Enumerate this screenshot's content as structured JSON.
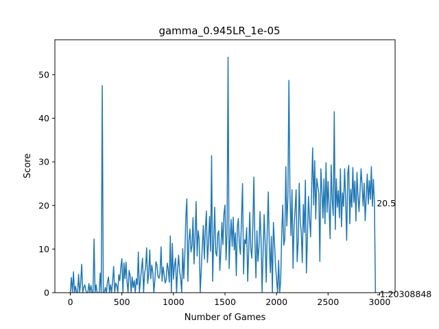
{
  "chart_data": {
    "type": "line",
    "title": "gamma_0.945LR_1e-05",
    "xlabel": "Number of Games",
    "ylabel": "Score",
    "xlim": [
      -150,
      3150
    ],
    "ylim": [
      0,
      58
    ],
    "xticks": [
      0,
      500,
      1000,
      1500,
      2000,
      2500,
      3000
    ],
    "yticks": [
      0,
      10,
      20,
      30,
      40,
      50
    ],
    "series_color": "#1f77b4",
    "grid": false,
    "annotations": [
      {
        "text": "20.5",
        "x": 2985,
        "y": 20.5
      },
      {
        "text": "-1.20308848",
        "x": 2985,
        "y": -0.3
      }
    ],
    "series": [
      {
        "x_start": 0,
        "x_step": 10,
        "values": [
          0,
          3.5,
          0,
          4.8,
          0,
          1.5,
          0,
          0,
          4.2,
          0,
          2.3,
          6.5,
          0,
          1.2,
          1.8,
          0.5,
          0,
          0,
          2.1,
          0,
          1.7,
          0,
          0,
          12.3,
          0,
          1.8,
          0,
          0,
          0,
          4.5,
          0,
          47.5,
          0,
          0,
          1.2,
          0,
          2.5,
          3.6,
          0,
          1.8,
          0,
          2.6,
          6.0,
          0,
          2.2,
          1.7,
          0,
          4.1,
          2.8,
          5.9,
          7.8,
          0,
          6.8,
          3.2,
          7.0,
          2.5,
          0,
          5.1,
          4.0,
          0,
          3.6,
          1.2,
          2.8,
          0,
          3.2,
          1.8,
          9.3,
          0,
          2.9,
          5.5,
          7.9,
          0,
          4.4,
          5.8,
          10.3,
          2.1,
          4.1,
          9.8,
          3.2,
          6.3,
          4.7,
          0,
          2.8,
          7.1,
          6.4,
          3.8,
          3.3,
          4.5,
          10.5,
          2.6,
          5.9,
          4.2,
          2.2,
          3.0,
          6.8,
          5.3,
          2.4,
          13.0,
          0,
          11.3,
          3.1,
          6.2,
          7.9,
          0,
          5.4,
          8.6,
          4.9,
          3.2,
          0,
          10.1,
          3.2,
          8.2,
          17.2,
          21.5,
          2.6,
          11.9,
          14.6,
          9.3,
          10.8,
          17.2,
          6.6,
          12.8,
          20.9,
          8.4,
          14.2,
          12.2,
          0,
          5.2,
          10.6,
          15.4,
          7.7,
          14.5,
          18.7,
          6.9,
          11.6,
          17.5,
          9.5,
          31.4,
          2.6,
          12.0,
          19.6,
          9.2,
          8.4,
          13.5,
          14.2,
          5.1,
          9.6,
          16.1,
          11.0,
          18.1,
          20.1,
          7.5,
          13.4,
          54.0,
          5.5,
          12.1,
          16.8,
          10.6,
          17.3,
          9.8,
          13.7,
          3.9,
          15.1,
          17.0,
          10.9,
          8.8,
          16.6,
          25.0,
          4.3,
          12.1,
          11.2,
          14.9,
          2.6,
          9.6,
          18.4,
          10.1,
          7.9,
          15.3,
          26.5,
          11.8,
          3.4,
          14.2,
          7.2,
          10.5,
          18.6,
          12.1,
          0,
          9.5,
          17.9,
          11.2,
          2.4,
          14.1,
          23.1,
          10.8,
          4.6,
          12.9,
          0,
          16.1,
          11.7,
          6.5,
          3.0,
          0,
          7.4,
          0,
          2.8,
          13.4,
          20.1,
          10.9,
          12.3,
          28.9,
          15.3,
          21.9,
          48.7,
          22.8,
          13.1,
          23.6,
          5.6,
          15.4,
          19.0,
          23.6,
          7.1,
          11.6,
          25.1,
          16.2,
          13.9,
          6.9,
          20.2,
          13.8,
          25.8,
          4.5,
          12.7,
          22.1,
          17.2,
          12.8,
          23.7,
          33.2,
          20.1,
          30.3,
          16.9,
          26.2,
          24.4,
          22.7,
          7.2,
          28.4,
          23.5,
          17.1,
          26.1,
          15.8,
          29.8,
          18.4,
          25.5,
          19.4,
          12.4,
          29.3,
          21.3,
          17.7,
          41.5,
          14.5,
          26.1,
          19.6,
          23.4,
          17.2,
          28.4,
          15.1,
          22.9,
          19.8,
          28.4,
          21.2,
          12.0,
          27.2,
          29.2,
          15.8,
          23.7,
          19.6,
          28.7,
          20.7,
          25.6,
          16.4,
          27.6,
          22.2,
          18.6,
          23.3,
          28.4,
          24.7,
          19.9,
          25.1,
          16.5,
          22.1,
          27.2,
          20.3,
          25.7,
          21.4,
          28.9,
          19.8,
          26.0,
          20.5,
          -1.2
        ]
      }
    ]
  }
}
